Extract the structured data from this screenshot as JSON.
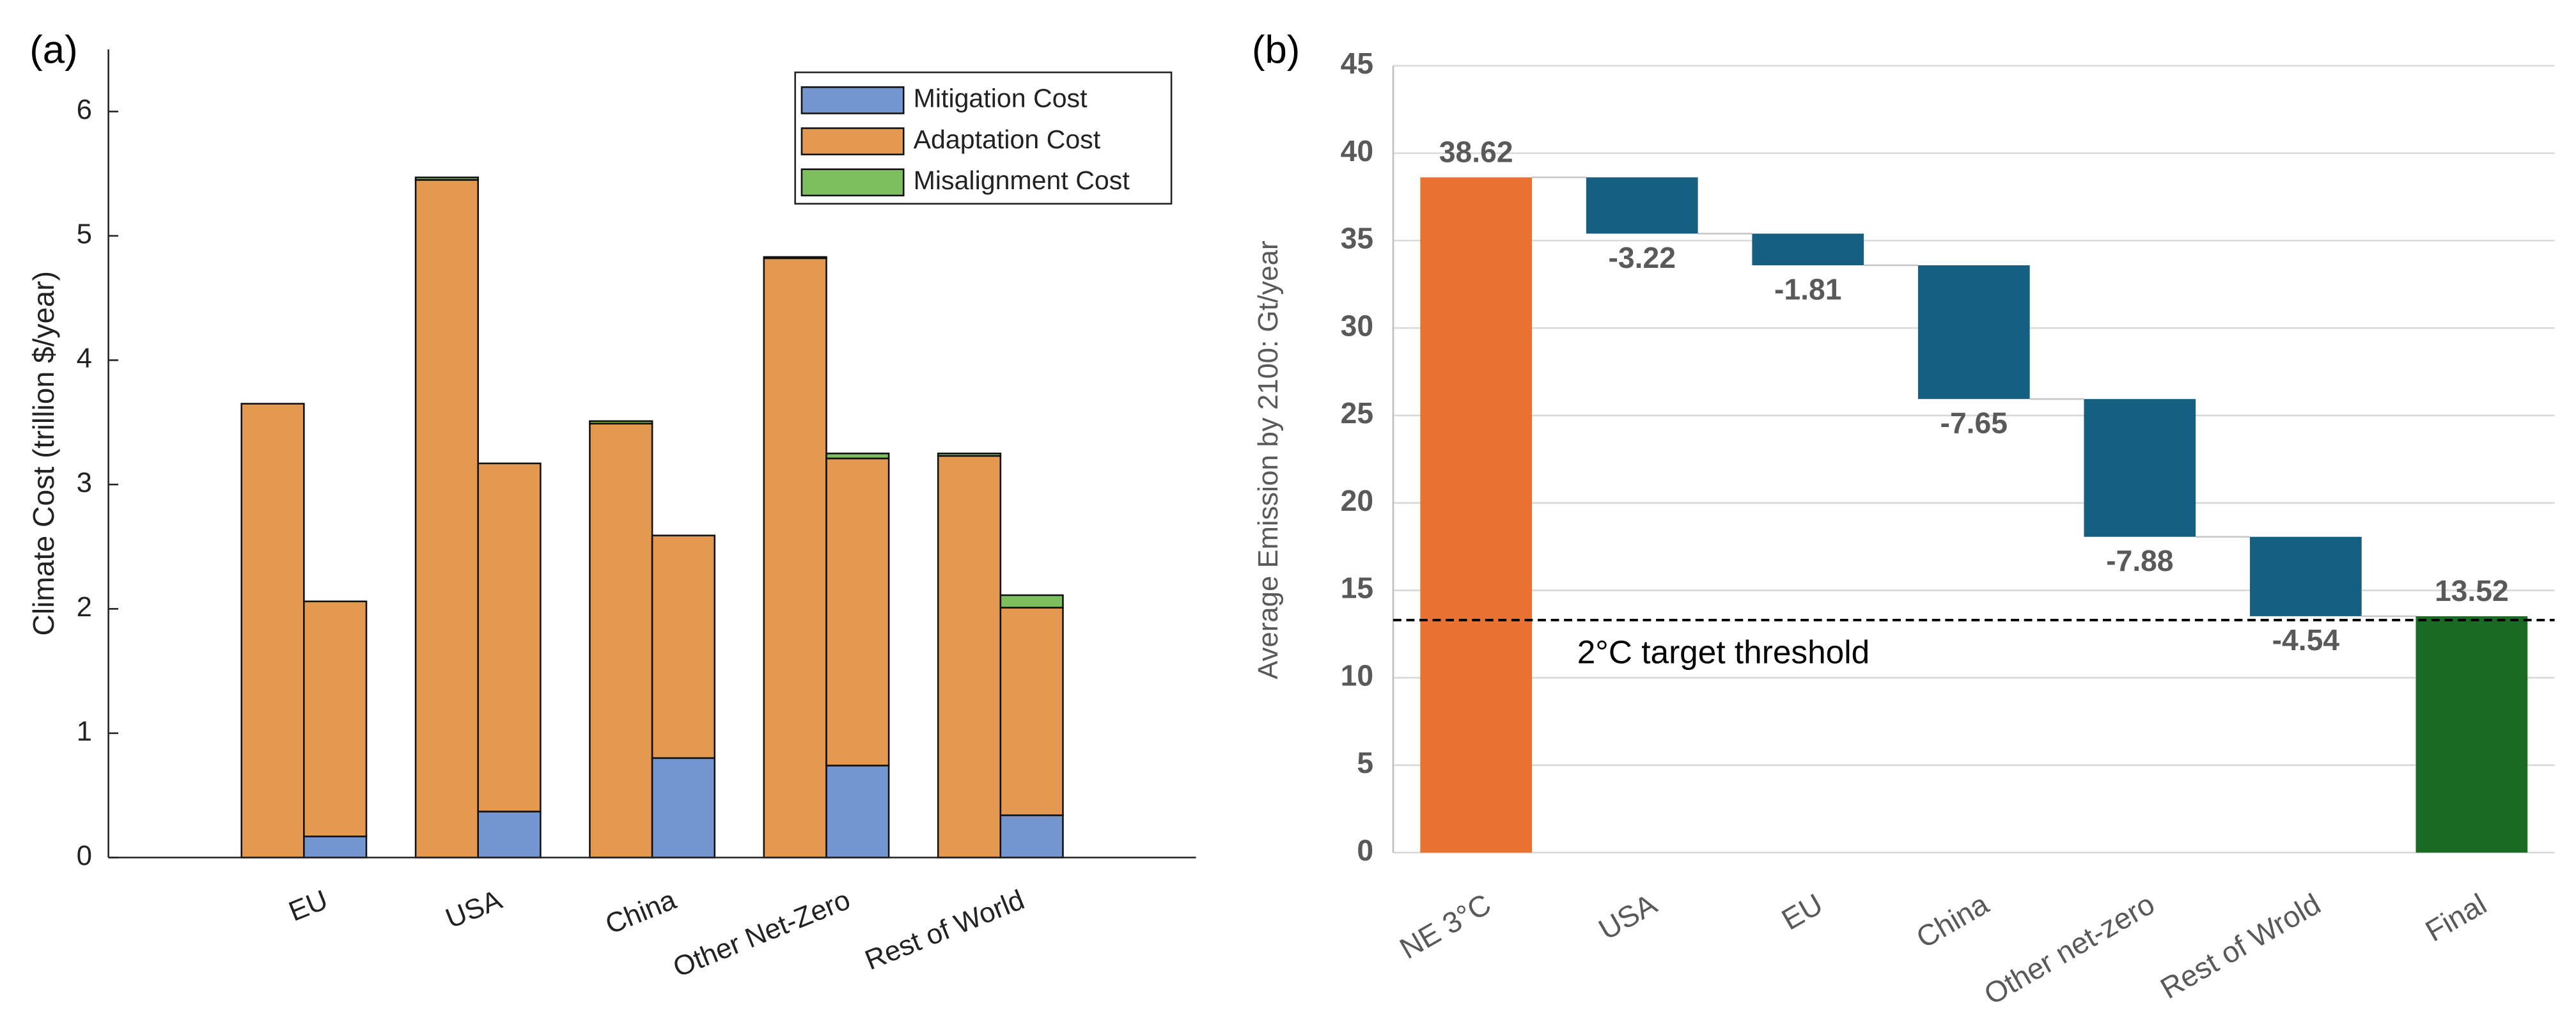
{
  "chart_data": [
    {
      "type": "stacked_bar",
      "panel_label": "(a)",
      "ylabel": "Climate Cost (trillion $/year)",
      "categories": [
        "EU",
        "USA",
        "China",
        "Other Net-Zero",
        "Rest of World"
      ],
      "series": [
        {
          "name": "Mitigation Cost",
          "color": "#7396d0",
          "values": [
            [
              0,
              0.17
            ],
            [
              0,
              0.37
            ],
            [
              0,
              0.8
            ],
            [
              0,
              0.74
            ],
            [
              0,
              0.34
            ]
          ]
        },
        {
          "name": "Adaptation Cost",
          "color": "#e3994f",
          "values": [
            [
              3.65,
              1.89
            ],
            [
              5.45,
              2.8
            ],
            [
              3.49,
              1.79
            ],
            [
              4.82,
              2.47
            ],
            [
              3.23,
              1.67
            ]
          ]
        },
        {
          "name": "Misalignment Cost",
          "color": "#7dbf5f",
          "values": [
            [
              0,
              0
            ],
            [
              0.02,
              0
            ],
            [
              0.02,
              0
            ],
            [
              0.01,
              0.04
            ],
            [
              0.02,
              0.1
            ]
          ]
        }
      ],
      "ylim": [
        0,
        6.5
      ],
      "yticks": [
        0,
        1,
        2,
        3,
        4,
        5,
        6
      ],
      "legend": "upper right",
      "grid": false
    },
    {
      "type": "waterfall",
      "panel_label": "(b)",
      "ylabel": "Average Emission by 2100: Gt/year",
      "categories": [
        "NE 3°C",
        "USA",
        "EU",
        "China",
        "Other net-zero",
        "Rest of Wrold",
        "Final"
      ],
      "values": [
        38.62,
        -3.22,
        -1.81,
        -7.65,
        -7.88,
        -4.54,
        13.52
      ],
      "measure": [
        "absolute",
        "relative",
        "relative",
        "relative",
        "relative",
        "relative",
        "total"
      ],
      "colors": [
        "#e97132",
        "#156082",
        "#156082",
        "#156082",
        "#156082",
        "#156082",
        "#196b24"
      ],
      "ylim": [
        0,
        45
      ],
      "yticks": [
        0,
        5,
        10,
        15,
        20,
        25,
        30,
        35,
        40,
        45
      ],
      "grid": true,
      "threshold": {
        "value": 13.3,
        "label": "2°C target threshold"
      }
    }
  ]
}
